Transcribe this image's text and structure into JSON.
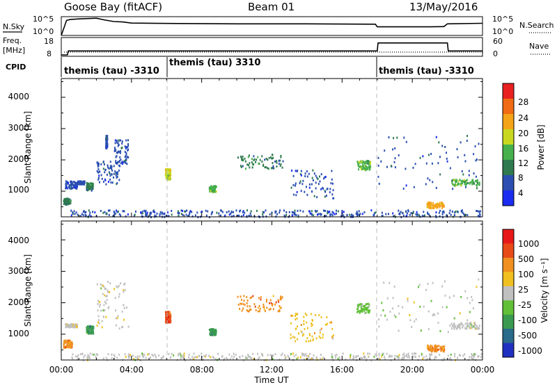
{
  "header": {
    "title": "Goose Bay (fitACF)",
    "beam": "Beam 01",
    "date": "13/May/2016"
  },
  "noise_panel": {
    "left_label": "N.Sky",
    "left_ticks": [
      "10^5",
      "10^0"
    ],
    "right_label": "N.Search",
    "right_ticks": [
      "10^5",
      "10^0"
    ],
    "line_color": "#000000"
  },
  "freq_panel": {
    "label_line1": "Freq.",
    "label_line2": "[MHz]",
    "left_ticks": [
      "18",
      "8"
    ],
    "right_label": "Nave",
    "right_ticks": [
      "60",
      "0"
    ]
  },
  "cpid": {
    "label": "CPID",
    "segments": [
      {
        "text": "themis (tau) -3310",
        "start_hour": 0
      },
      {
        "text": "themis (tau) 3310",
        "start_hour": 6
      },
      {
        "text": "themis (tau) -3310",
        "start_hour": 18
      }
    ]
  },
  "time_axis": {
    "label": "Time UT",
    "ticks": [
      "00:00",
      "04:00",
      "08:00",
      "12:00",
      "16:00",
      "20:00",
      "00:00"
    ]
  },
  "power_panel": {
    "ylabel": "Slant Range [km]",
    "yticks": [
      "1000",
      "2000",
      "3000",
      "4000"
    ],
    "colorbar_label": "Power [dB]",
    "colorbar_ticks": [
      "4",
      "8",
      "12",
      "16",
      "20",
      "24",
      "28"
    ],
    "colors": [
      "#1a2cf0",
      "#2a4fb0",
      "#2f7a4f",
      "#46b04c",
      "#c8d820",
      "#f4a418",
      "#f06c14",
      "#e82020"
    ]
  },
  "velocity_panel": {
    "ylabel": "Slant Range [km]",
    "yticks": [
      "1000",
      "2000",
      "3000",
      "4000"
    ],
    "colorbar_label": "Velocity [m s⁻¹]",
    "colorbar_ticks": [
      "1000",
      "500",
      "100",
      "25",
      "-25",
      "-100",
      "-500",
      "-1000"
    ],
    "colors": [
      "#2030c0",
      "#2a6a8a",
      "#3a9a50",
      "#62c038",
      "#c0c0c0",
      "#f0c020",
      "#f09020",
      "#e84a18",
      "#e81818"
    ]
  },
  "chart_data": [
    {
      "type": "line",
      "name": "noise",
      "x_range_hours": [
        0,
        24
      ],
      "series": [
        {
          "x": [
            0,
            0.3,
            0.5,
            1,
            1.5,
            2,
            2.5,
            3,
            3.5,
            4,
            6,
            10,
            14,
            17.9,
            18,
            21,
            21.8,
            22,
            24
          ],
          "y": [
            0,
            0.8,
            0.85,
            0.88,
            0.9,
            0.92,
            0.82,
            0.74,
            0.72,
            0.66,
            0.64,
            0.62,
            0.62,
            0.6,
            0.46,
            0.46,
            0.47,
            0.62,
            0.65
          ]
        }
      ]
    },
    {
      "type": "line",
      "name": "frequency",
      "x_range_hours": [
        0,
        24
      ],
      "ylim": [
        8,
        18
      ],
      "series": [
        {
          "x": [
            0,
            0.35,
            0.4,
            18,
            18.05,
            22,
            22.05,
            24
          ],
          "y": [
            8,
            8,
            10.5,
            10.5,
            15.5,
            15.5,
            10.5,
            10.5
          ]
        }
      ]
    },
    {
      "type": "scatter",
      "name": "power",
      "xlabel": "Time UT",
      "ylabel": "Slant Range [km]",
      "xlim_hours": [
        0,
        24
      ],
      "ylim_km": [
        180,
        4600
      ],
      "clusters": [
        {
          "x": [
            0.1,
            0.5
          ],
          "y": [
            600,
            800
          ],
          "c": 2
        },
        {
          "x": [
            0.2,
            0.9
          ],
          "y": [
            1100,
            1350
          ],
          "c": 1
        },
        {
          "x": [
            0.9,
            1.3
          ],
          "y": [
            1250,
            1350
          ],
          "c": 1
        },
        {
          "x": [
            1.4,
            1.8
          ],
          "y": [
            1050,
            1300
          ],
          "c": 2
        },
        {
          "x": [
            2.0,
            3.3
          ],
          "y": [
            1250,
            2000
          ],
          "c": 1
        },
        {
          "x": [
            3.0,
            3.8
          ],
          "y": [
            1900,
            2700
          ],
          "c": 1
        },
        {
          "x": [
            2.5,
            2.6
          ],
          "y": [
            2400,
            2800
          ],
          "c": 1
        },
        {
          "x": [
            5.9,
            6.2
          ],
          "y": [
            1400,
            1750
          ],
          "c": 4
        },
        {
          "x": [
            8.4,
            8.8
          ],
          "y": [
            1000,
            1200
          ],
          "c": 3
        },
        {
          "x": [
            10.0,
            12.6
          ],
          "y": [
            1750,
            2200
          ],
          "c": 2
        },
        {
          "x": [
            13.0,
            15.5
          ],
          "y": [
            800,
            1700
          ],
          "c": 1
        },
        {
          "x": [
            16.8,
            17.6
          ],
          "y": [
            1700,
            2000
          ],
          "c": 3
        },
        {
          "x": [
            18.0,
            23.8
          ],
          "y": [
            1100,
            2800
          ],
          "c": 1
        },
        {
          "x": [
            22.2,
            23.8
          ],
          "y": [
            1200,
            1400
          ],
          "c": 3
        },
        {
          "x": [
            20.8,
            21.8
          ],
          "y": [
            480,
            680
          ],
          "c": 5
        },
        {
          "x": [
            0.5,
            23.9
          ],
          "y": [
            200,
            420
          ],
          "c": 1
        }
      ]
    },
    {
      "type": "scatter",
      "name": "velocity",
      "xlabel": "Time UT",
      "ylabel": "Slant Range [km]",
      "xlim_hours": [
        0,
        24
      ],
      "ylim_km": [
        180,
        4600
      ],
      "clusters": [
        {
          "x": [
            0.1,
            0.6
          ],
          "y": [
            600,
            850
          ],
          "c": 6
        },
        {
          "x": [
            0.2,
            0.9
          ],
          "y": [
            1250,
            1350
          ],
          "c": 4
        },
        {
          "x": [
            1.4,
            1.8
          ],
          "y": [
            1050,
            1300
          ],
          "c": 2
        },
        {
          "x": [
            2.0,
            3.8
          ],
          "y": [
            1200,
            2700
          ],
          "c": 4
        },
        {
          "x": [
            5.9,
            6.2
          ],
          "y": [
            1400,
            1750
          ],
          "c": 7
        },
        {
          "x": [
            8.4,
            8.8
          ],
          "y": [
            1000,
            1200
          ],
          "c": 2
        },
        {
          "x": [
            10.0,
            12.6
          ],
          "y": [
            1750,
            2250
          ],
          "c": 6
        },
        {
          "x": [
            13.0,
            15.5
          ],
          "y": [
            800,
            1700
          ],
          "c": 5
        },
        {
          "x": [
            16.8,
            17.6
          ],
          "y": [
            1700,
            2000
          ],
          "c": 3
        },
        {
          "x": [
            18.0,
            23.8
          ],
          "y": [
            1100,
            2800
          ],
          "c": 4
        },
        {
          "x": [
            22.2,
            23.8
          ],
          "y": [
            1200,
            1400
          ],
          "c": 4
        },
        {
          "x": [
            20.8,
            21.8
          ],
          "y": [
            480,
            680
          ],
          "c": 6
        },
        {
          "x": [
            0.5,
            23.9
          ],
          "y": [
            200,
            420
          ],
          "c": 4
        }
      ]
    }
  ]
}
